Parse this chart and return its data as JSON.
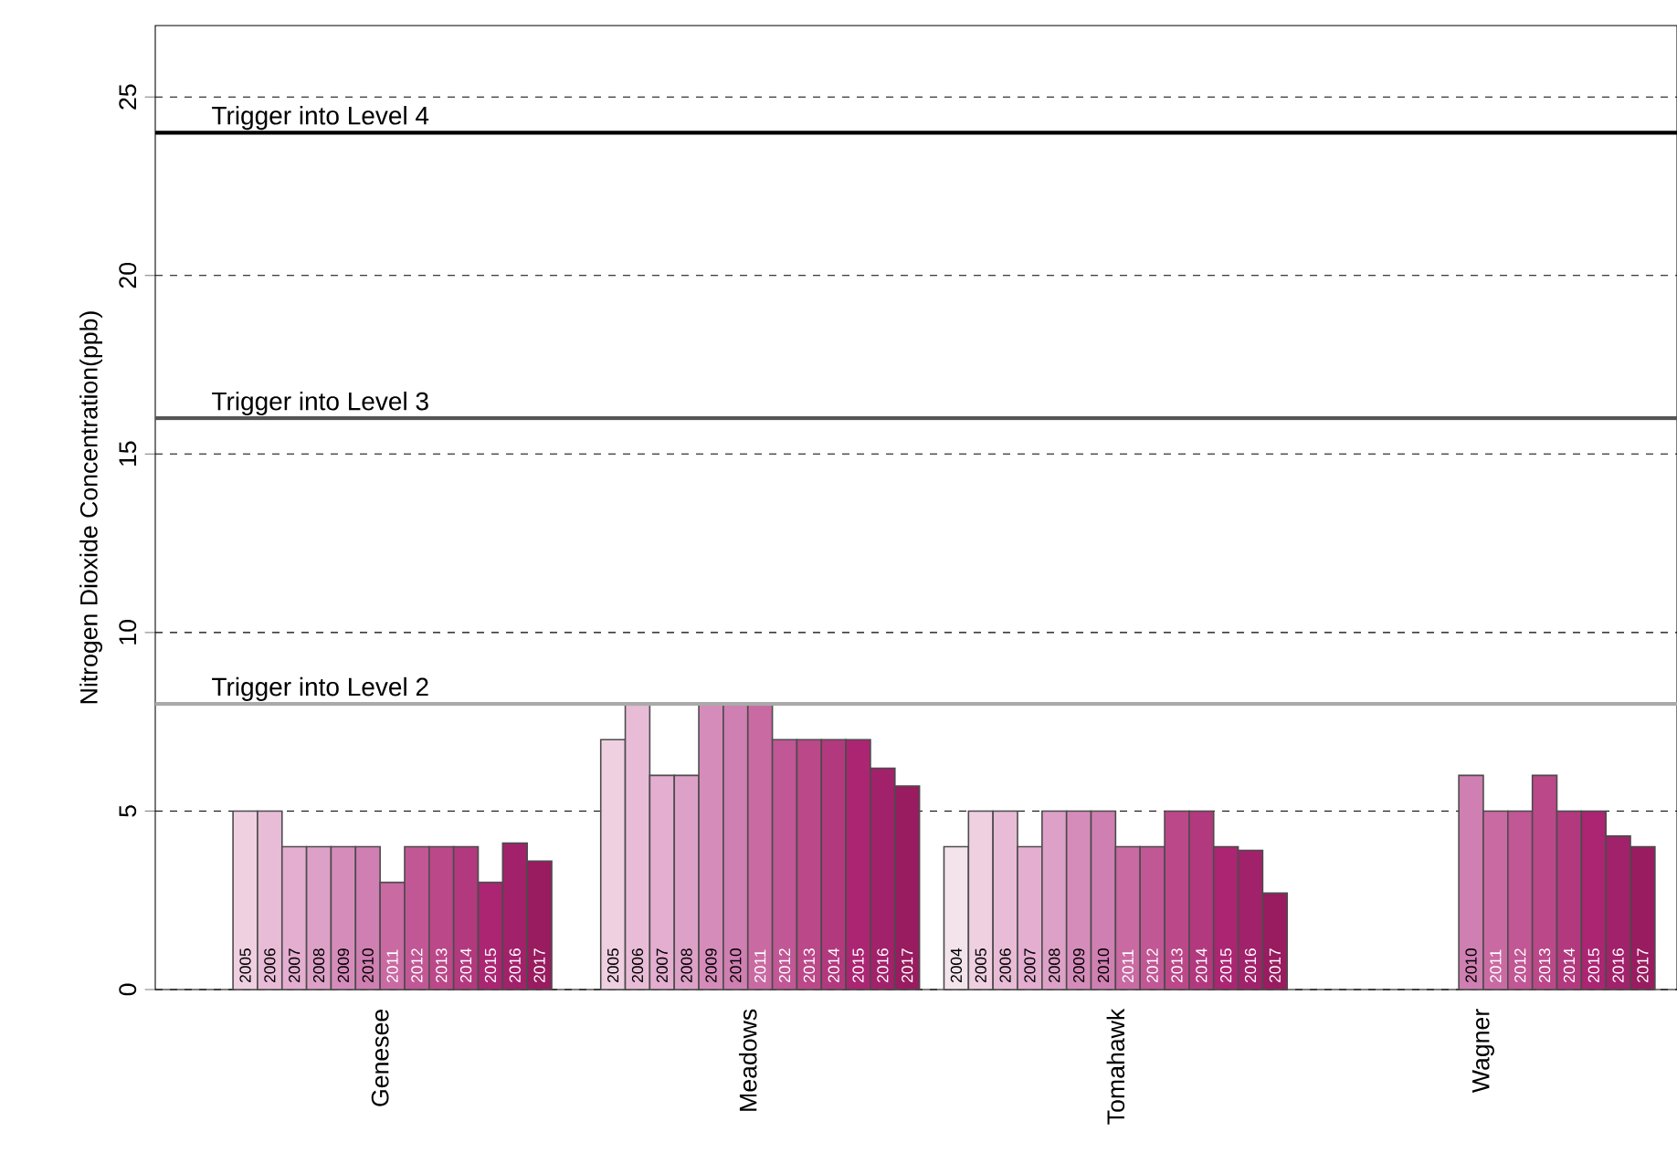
{
  "chart_data": {
    "type": "bar",
    "ylabel": "Nitrogen Dioxide Concentration(ppb)",
    "categories": [
      "Genesee",
      "Meadows",
      "Tomahawk",
      "Wagner"
    ],
    "ylim": [
      0,
      27
    ],
    "yticks": [
      0,
      5,
      10,
      15,
      20,
      25
    ],
    "grid": "y",
    "series": [
      {
        "name": "2004",
        "color": "#f3e4ec",
        "values": [
          null,
          null,
          4,
          null
        ]
      },
      {
        "name": "2005",
        "color": "#efd0e1",
        "values": [
          5,
          7,
          5,
          null
        ]
      },
      {
        "name": "2006",
        "color": "#e8bcd7",
        "values": [
          5,
          8,
          5,
          null
        ]
      },
      {
        "name": "2007",
        "color": "#e3aed0",
        "values": [
          4,
          6,
          4,
          null
        ]
      },
      {
        "name": "2008",
        "color": "#dda1c7",
        "values": [
          4,
          6,
          5,
          null
        ]
      },
      {
        "name": "2009",
        "color": "#d68cbb",
        "values": [
          4,
          8,
          5,
          null
        ]
      },
      {
        "name": "2010",
        "color": "#cf7fb1",
        "values": [
          4,
          8,
          5,
          6
        ]
      },
      {
        "name": "2011",
        "color": "#c96aa3",
        "values": [
          3,
          8,
          4,
          5
        ]
      },
      {
        "name": "2012",
        "color": "#c15795",
        "values": [
          4,
          7,
          4,
          5
        ]
      },
      {
        "name": "2013",
        "color": "#bb4888",
        "values": [
          4,
          7,
          5,
          6
        ]
      },
      {
        "name": "2014",
        "color": "#b2397e",
        "values": [
          4,
          7,
          5,
          5
        ]
      },
      {
        "name": "2015",
        "color": "#ab2573",
        "values": [
          3,
          7,
          4,
          5
        ]
      },
      {
        "name": "2016",
        "color": "#a2216b",
        "values": [
          4.1,
          6.2,
          3.9,
          4.3
        ]
      },
      {
        "name": "2017",
        "color": "#981c5f",
        "values": [
          3.6,
          5.7,
          2.7,
          4.0
        ]
      }
    ],
    "ref_lines": [
      {
        "axis": "y",
        "value": 8,
        "label": "Trigger into Level 2",
        "color": "#aaaaaa"
      },
      {
        "axis": "y",
        "value": 16,
        "label": "Trigger into Level 3",
        "color": "#555555"
      },
      {
        "axis": "y",
        "value": 24,
        "label": "Trigger into Level 4",
        "color": "#000000"
      }
    ]
  }
}
